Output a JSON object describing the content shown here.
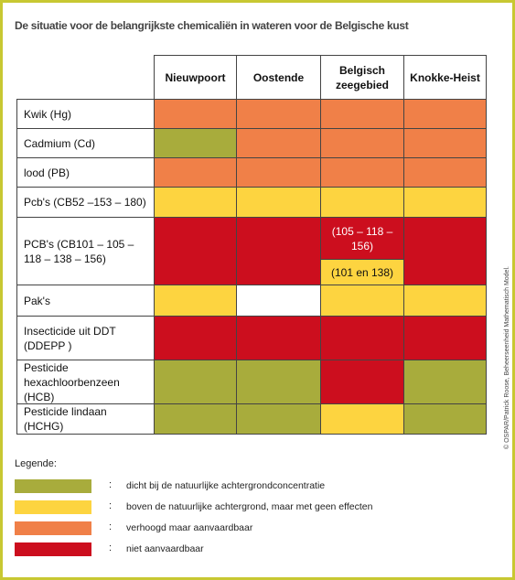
{
  "title": "De situatie voor de belangrijkste chemicaliën in wateren voor de Belgische kust",
  "table": {
    "header": [
      "Nieuwpoort",
      "Oostende",
      "Belgisch zeegebied",
      "Knokke-Heist"
    ],
    "rows": [
      {
        "label": "Kwik (Hg)",
        "cells": [
          "#f08048",
          "#f08048",
          "#f08048",
          "#f08048"
        ]
      },
      {
        "label": "Cadmium (Cd)",
        "cells": [
          "#a8ac3c",
          "#f08048",
          "#f08048",
          "#f08048"
        ]
      },
      {
        "label": "lood (PB)",
        "cells": [
          "#f08048",
          "#f08048",
          "#f08048",
          "#f08048"
        ]
      },
      {
        "label": "Pcb's (CB52 –153 – 180)",
        "cells": [
          "#fdd440",
          "#fdd440",
          "#fdd440",
          "#fdd440"
        ]
      },
      {
        "label": "PCB's (CB101 – 105 – 118 – 138 – 156)",
        "cells": [
          "#cc0e1e",
          "#cc0e1e",
          {
            "parts": [
              {
                "color": "#cc0e1e",
                "text": "(105 – 118 – 156)"
              },
              {
                "color": "#fdd440",
                "text": "(101 en 138)"
              }
            ]
          },
          "#cc0e1e"
        ]
      },
      {
        "label": "Pak's",
        "cells": [
          "#fdd440",
          "#ffffff",
          "#fdd440",
          "#fdd440"
        ]
      },
      {
        "label": "Insecticide uit DDT (DDEPP )",
        "cells": [
          "#cc0e1e",
          "#cc0e1e",
          "#cc0e1e",
          "#cc0e1e"
        ]
      },
      {
        "label": "Pesticide hexachloorbenzeen (HCB)",
        "cells": [
          "#a8ac3c",
          "#a8ac3c",
          "#cc0e1e",
          "#a8ac3c"
        ]
      },
      {
        "label": "Pesticide lindaan (HCHG)",
        "cells": [
          "#a8ac3c",
          "#a8ac3c",
          "#fdd440",
          "#a8ac3c"
        ]
      }
    ]
  },
  "legend": {
    "title": "Legende:",
    "separator": ":",
    "items": [
      {
        "color": "#a8ac3c",
        "text": "dicht bij de natuurlijke achtergrondconcentratie"
      },
      {
        "color": "#fdd440",
        "text": "boven de natuurlijke achtergrond, maar met geen effecten"
      },
      {
        "color": "#f08048",
        "text": "verhoogd maar aanvaardbaar"
      },
      {
        "color": "#cc0e1e",
        "text": "niet aanvaardbaar"
      }
    ]
  },
  "credit": "© OSPAR/Patrick Roose, Beheerseenheid Mathematisch Model."
}
